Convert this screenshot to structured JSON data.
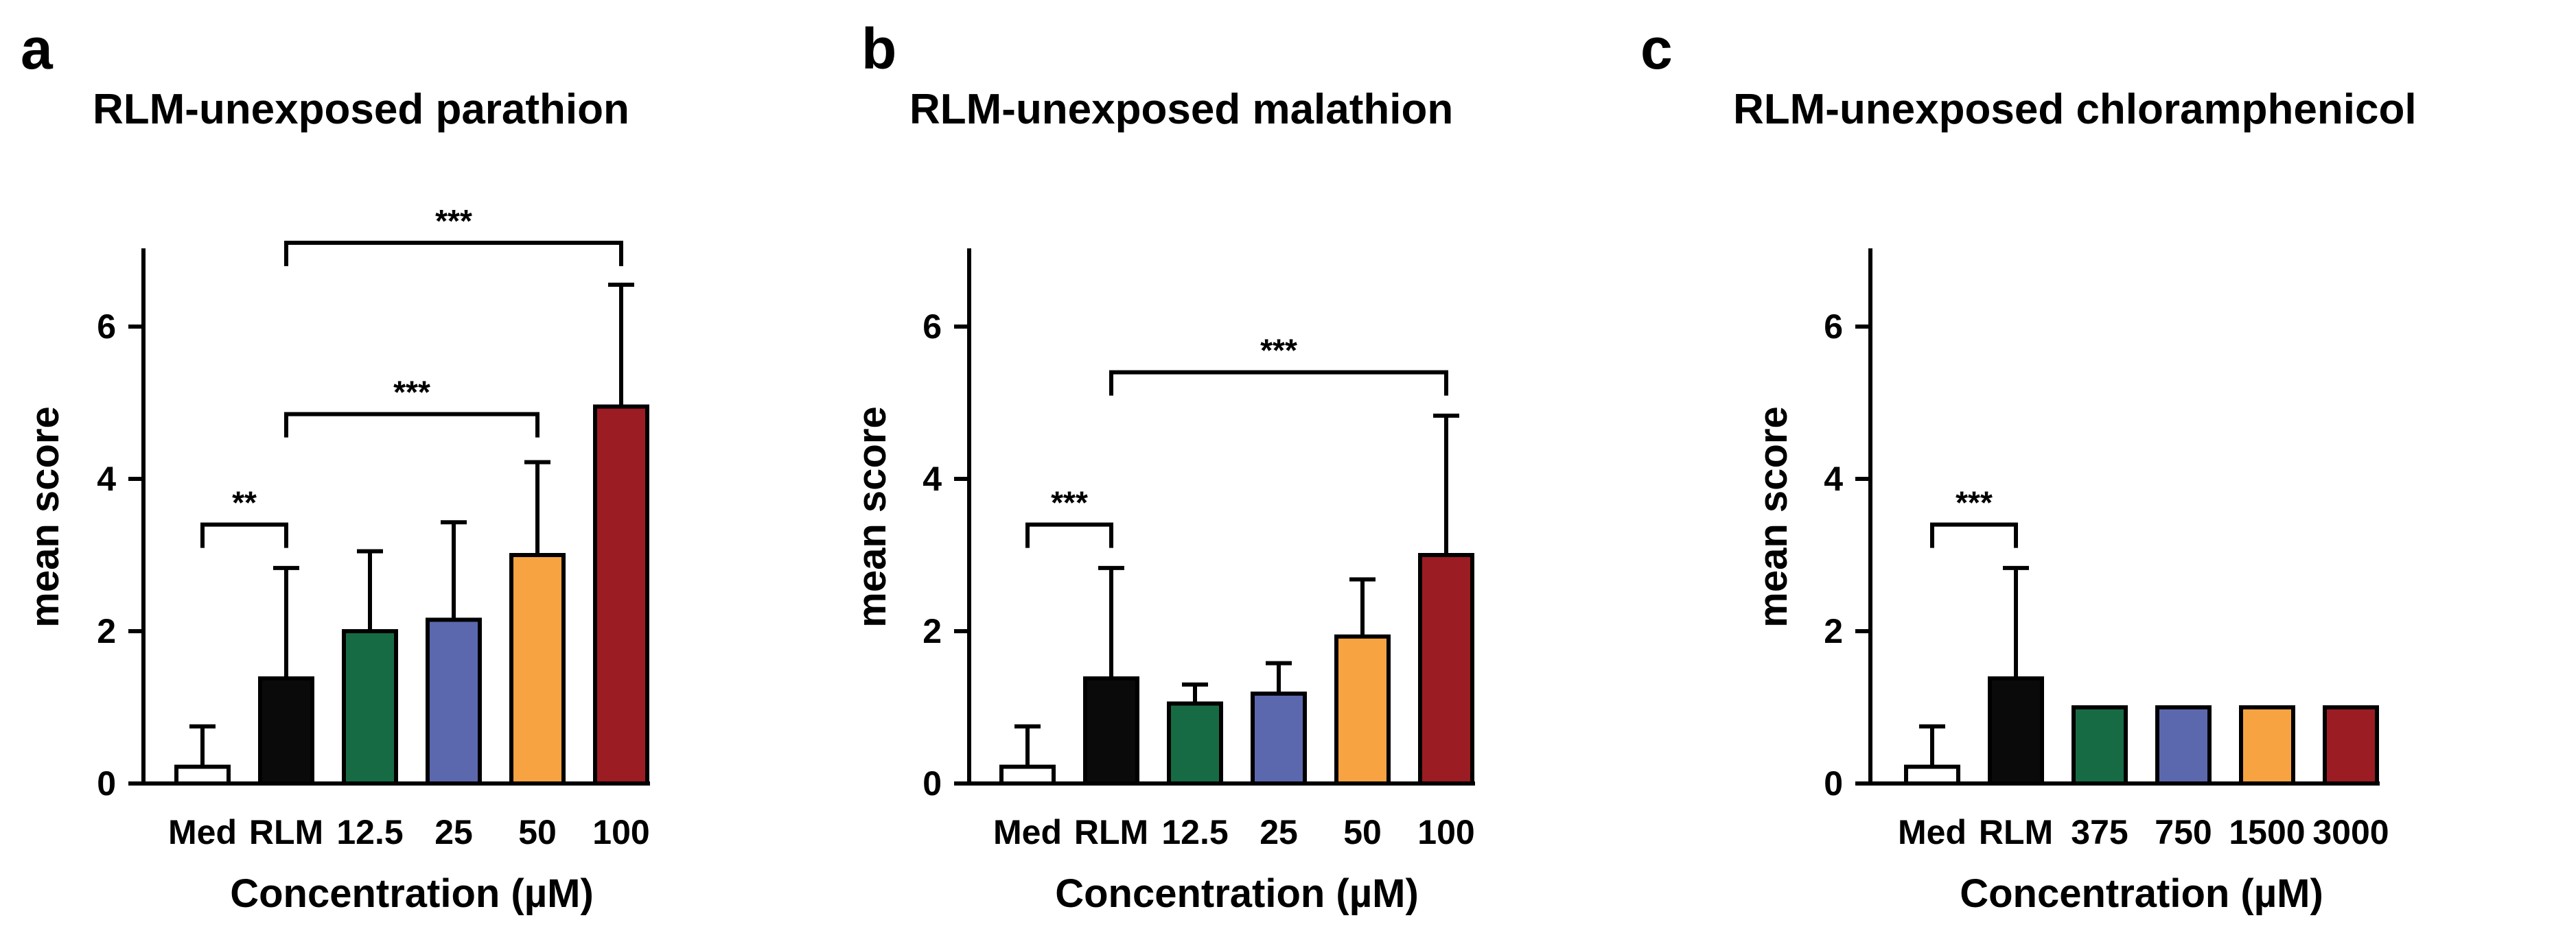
{
  "chart_data": [
    {
      "panel": "a",
      "type": "bar",
      "title": "RLM-unexposed parathion",
      "xlabel": "Concentration (µM)",
      "ylabel": "mean score",
      "ylim": [
        0,
        7
      ],
      "yticks": [
        0,
        2,
        4,
        6
      ],
      "categories": [
        "Med",
        "RLM",
        "12.5",
        "25",
        "50",
        "100"
      ],
      "values": [
        0.22,
        1.38,
        2.0,
        2.15,
        3.0,
        4.95
      ],
      "errors": [
        0.53,
        1.45,
        1.05,
        1.28,
        1.22,
        1.6
      ],
      "colors": [
        "#ffffff",
        "#0a0a0a",
        "#176b44",
        "#5c68ad",
        "#f7a342",
        "#9b1c22"
      ],
      "significance": [
        {
          "from": 0,
          "to": 1,
          "label": "**",
          "y": 3.4
        },
        {
          "from": 1,
          "to": 4,
          "label": "***",
          "y": 4.85
        },
        {
          "from": 1,
          "to": 5,
          "label": "***",
          "y": 7.1
        }
      ]
    },
    {
      "panel": "b",
      "type": "bar",
      "title": "RLM-unexposed malathion",
      "xlabel": "Concentration (µM)",
      "ylabel": "mean score",
      "ylim": [
        0,
        7
      ],
      "yticks": [
        0,
        2,
        4,
        6
      ],
      "categories": [
        "Med",
        "RLM",
        "12.5",
        "25",
        "50",
        "100"
      ],
      "values": [
        0.22,
        1.38,
        1.05,
        1.18,
        1.93,
        3.0
      ],
      "errors": [
        0.53,
        1.45,
        0.25,
        0.4,
        0.75,
        1.83
      ],
      "colors": [
        "#ffffff",
        "#0a0a0a",
        "#176b44",
        "#5c68ad",
        "#f7a342",
        "#9b1c22"
      ],
      "significance": [
        {
          "from": 0,
          "to": 1,
          "label": "***",
          "y": 3.4
        },
        {
          "from": 1,
          "to": 5,
          "label": "***",
          "y": 5.4
        }
      ]
    },
    {
      "panel": "c",
      "type": "bar",
      "title": "RLM-unexposed chloramphenicol",
      "xlabel": "Concentration (µM)",
      "ylabel": "mean score",
      "ylim": [
        0,
        7
      ],
      "yticks": [
        0,
        2,
        4,
        6
      ],
      "categories": [
        "Med",
        "RLM",
        "375",
        "750",
        "1500",
        "3000"
      ],
      "values": [
        0.22,
        1.38,
        1.0,
        1.0,
        1.0,
        1.0
      ],
      "errors": [
        0.53,
        1.45,
        0,
        0,
        0,
        0
      ],
      "colors": [
        "#ffffff",
        "#0a0a0a",
        "#176b44",
        "#5c68ad",
        "#f7a342",
        "#9b1c22"
      ],
      "significance": [
        {
          "from": 0,
          "to": 1,
          "label": "***",
          "y": 3.4
        }
      ]
    }
  ]
}
